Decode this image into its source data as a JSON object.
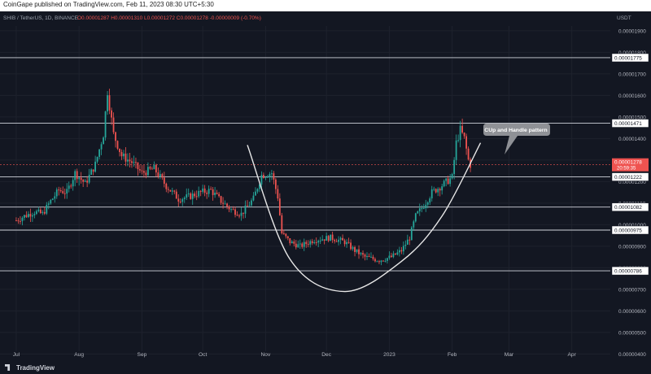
{
  "header": {
    "published": "CoinGape published on TradingView.com, Feb 11, 2023 08:30 UTC+5:30",
    "symbol_line": "SHIB / TetherUS, 1D, BINANCE",
    "ohlc": "O0.00001287  H0.00001310  L0.00001272  C0.00001278  -0.00000009 (-0.70%)",
    "currency": "USDT"
  },
  "annotation": {
    "label": "CUp and Handle pattern"
  },
  "price_tag": {
    "price": "0.00001278",
    "countdown": "20:59:35"
  },
  "footer": {
    "brand": "TradingView"
  },
  "colors": {
    "background": "#131722",
    "up": "#26a69a",
    "down": "#ef5350",
    "level_line": "#d1d4dc",
    "grid": "#1e222d",
    "price_tag": "#ef5350"
  },
  "chart_data": {
    "type": "candlestick",
    "title": "SHIB / TetherUS, 1D, BINANCE",
    "ylabel": "USDT",
    "ylim": [
      3.6e-06,
      1.99e-05
    ],
    "y_ticks": [
      "0.00001900",
      "0.00001800",
      "0.00001700",
      "0.00001600",
      "0.00001500",
      "0.00001400",
      "0.00001300",
      "0.00001200",
      "0.00001100",
      "0.00001000",
      "0.00000900",
      "0.00000800",
      "0.00000700",
      "0.00000600",
      "0.00000500",
      "0.00000400"
    ],
    "x_ticks": [
      "Jul",
      "Aug",
      "Sep",
      "Oct",
      "Nov",
      "Dec",
      "2023",
      "Feb",
      "Mar",
      "Apr"
    ],
    "levels": [
      "0.00001775",
      "0.00001471",
      "0.00001222",
      "0.00001082",
      "0.00000975",
      "0.00000786"
    ],
    "last_price": "0.00001278",
    "anchors": [
      [
        "2022-07-01",
        1.02e-05
      ],
      [
        "2022-07-05",
        1.04e-05
      ],
      [
        "2022-07-10",
        1.06e-05
      ],
      [
        "2022-07-14",
        1.05e-05
      ],
      [
        "2022-07-18",
        1.11e-05
      ],
      [
        "2022-07-22",
        1.16e-05
      ],
      [
        "2022-07-26",
        1.15e-05
      ],
      [
        "2022-07-30",
        1.24e-05
      ],
      [
        "2022-08-04",
        1.19e-05
      ],
      [
        "2022-08-09",
        1.28e-05
      ],
      [
        "2022-08-13",
        1.42e-05
      ],
      [
        "2022-08-15",
        1.62e-05
      ],
      [
        "2022-08-18",
        1.42e-05
      ],
      [
        "2022-08-22",
        1.32e-05
      ],
      [
        "2022-08-27",
        1.29e-05
      ],
      [
        "2022-09-01",
        1.24e-05
      ],
      [
        "2022-09-07",
        1.26e-05
      ],
      [
        "2022-09-13",
        1.18e-05
      ],
      [
        "2022-09-19",
        1.12e-05
      ],
      [
        "2022-09-24",
        1.13e-05
      ],
      [
        "2022-09-30",
        1.15e-05
      ],
      [
        "2022-10-05",
        1.16e-05
      ],
      [
        "2022-10-10",
        1.11e-05
      ],
      [
        "2022-10-15",
        1.07e-05
      ],
      [
        "2022-10-20",
        1.05e-05
      ],
      [
        "2022-10-26",
        1.12e-05
      ],
      [
        "2022-10-30",
        1.23e-05
      ],
      [
        "2022-11-04",
        1.24e-05
      ],
      [
        "2022-11-07",
        1.13e-05
      ],
      [
        "2022-11-09",
        9.6e-06
      ],
      [
        "2022-11-13",
        9.2e-06
      ],
      [
        "2022-11-18",
        9e-06
      ],
      [
        "2022-11-25",
        9.3e-06
      ],
      [
        "2022-12-03",
        9.4e-06
      ],
      [
        "2022-12-10",
        9.2e-06
      ],
      [
        "2022-12-15",
        8.8e-06
      ],
      [
        "2022-12-20",
        8.5e-06
      ],
      [
        "2022-12-27",
        8.35e-06
      ],
      [
        "2023-01-02",
        8.5e-06
      ],
      [
        "2023-01-07",
        8.8e-06
      ],
      [
        "2023-01-11",
        9.4e-06
      ],
      [
        "2023-01-14",
        1.04e-05
      ],
      [
        "2023-01-18",
        1.09e-05
      ],
      [
        "2023-01-22",
        1.15e-05
      ],
      [
        "2023-01-25",
        1.17e-05
      ],
      [
        "2023-01-28",
        1.19e-05
      ],
      [
        "2023-02-01",
        1.22e-05
      ],
      [
        "2023-02-03",
        1.38e-05
      ],
      [
        "2023-02-05",
        1.44e-05
      ],
      [
        "2023-02-07",
        1.4e-05
      ],
      [
        "2023-02-09",
        1.3e-05
      ],
      [
        "2023-02-10",
        1.278e-05
      ]
    ],
    "cup_curve": [
      [
        "2022-10-23",
        1.37e-05
      ],
      [
        "2022-11-13",
        8.4e-06
      ],
      [
        "2022-12-10",
        6.9e-06
      ],
      [
        "2023-01-07",
        8.3e-06
      ],
      [
        "2023-01-27",
        1.04e-05
      ],
      [
        "2023-02-15",
        1.38e-05
      ]
    ],
    "grid": true
  }
}
